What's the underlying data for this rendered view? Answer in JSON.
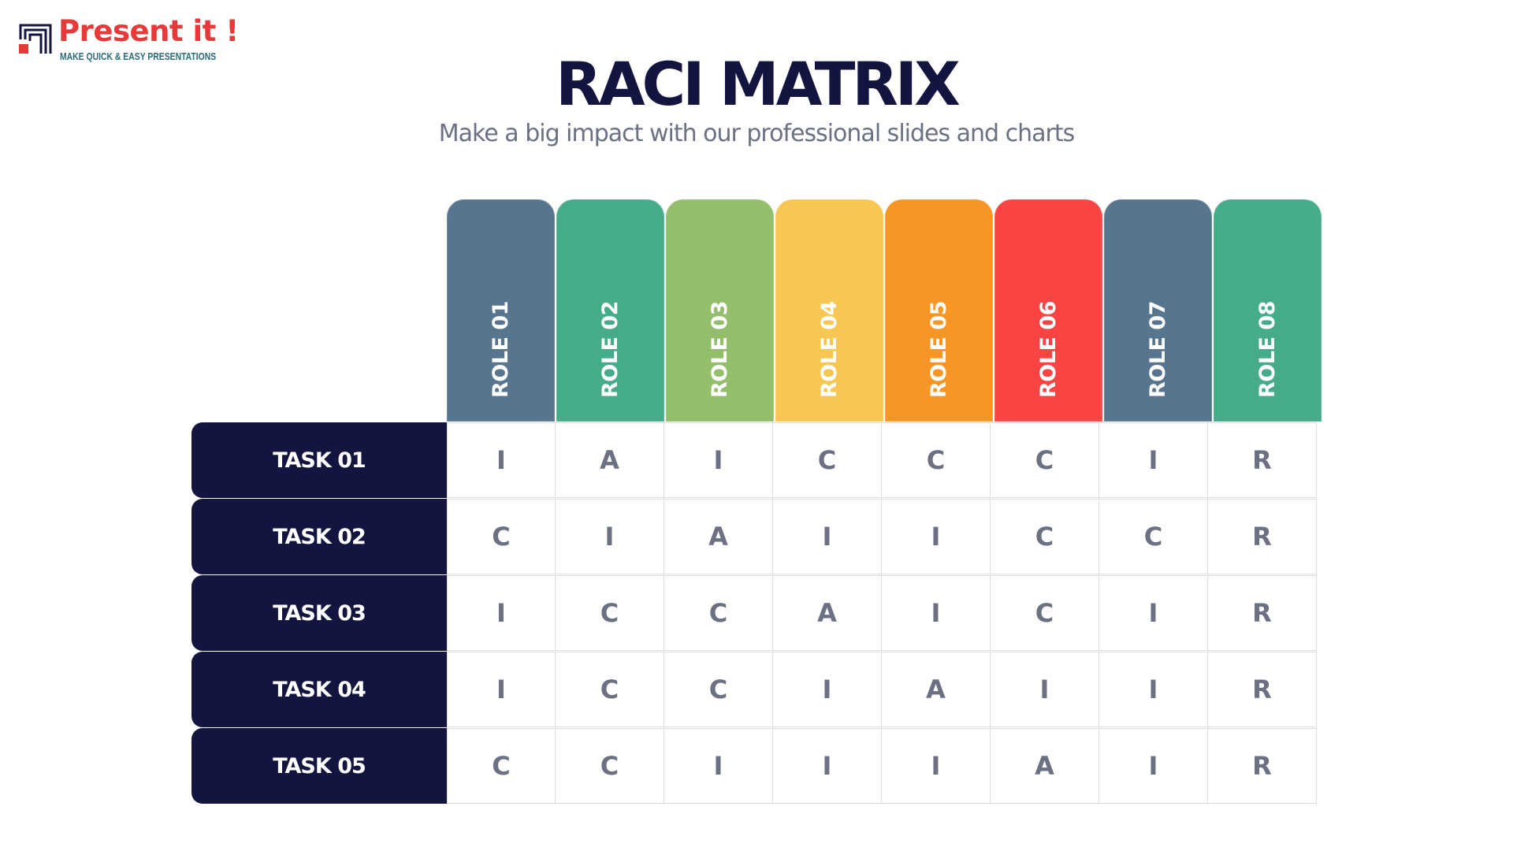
{
  "logo": {
    "name": "Present it !",
    "tagline": "MAKE QUICK & EASY PRESENTATIONS",
    "colors": {
      "name": "#e63a3a",
      "tagline": "#2a6b7a",
      "mark": "#131540",
      "mark_accent": "#e63a3a"
    }
  },
  "title": "RACI MATRIX",
  "subtitle": "Make a big impact with our professional slides and charts",
  "colors": {
    "title": "#131540",
    "subtitle": "#6b7082",
    "task_bg": "#131540",
    "cell_text": "#6b7082",
    "grid_line": "#dcdde2"
  },
  "roles": [
    {
      "label": "ROLE 01",
      "color": "#587590"
    },
    {
      "label": "ROLE 02",
      "color": "#45ab8b"
    },
    {
      "label": "ROLE 03",
      "color": "#93bf6d"
    },
    {
      "label": "ROLE 04",
      "color": "#f8c652"
    },
    {
      "label": "ROLE 05",
      "color": "#f79624"
    },
    {
      "label": "ROLE 06",
      "color": "#fa4343"
    },
    {
      "label": "ROLE 07",
      "color": "#587590"
    },
    {
      "label": "ROLE 08",
      "color": "#45ab8b"
    }
  ],
  "tasks": [
    {
      "label": "TASK 01",
      "values": [
        "I",
        "A",
        "I",
        "C",
        "C",
        "C",
        "I",
        "R"
      ]
    },
    {
      "label": "TASK 02",
      "values": [
        "C",
        "I",
        "A",
        "I",
        "I",
        "C",
        "C",
        "R"
      ]
    },
    {
      "label": "TASK 03",
      "values": [
        "I",
        "C",
        "C",
        "A",
        "I",
        "C",
        "I",
        "R"
      ]
    },
    {
      "label": "TASK 04",
      "values": [
        "I",
        "C",
        "C",
        "I",
        "A",
        "I",
        "I",
        "R"
      ]
    },
    {
      "label": "TASK 05",
      "values": [
        "C",
        "C",
        "I",
        "I",
        "I",
        "A",
        "I",
        "R"
      ]
    }
  ]
}
